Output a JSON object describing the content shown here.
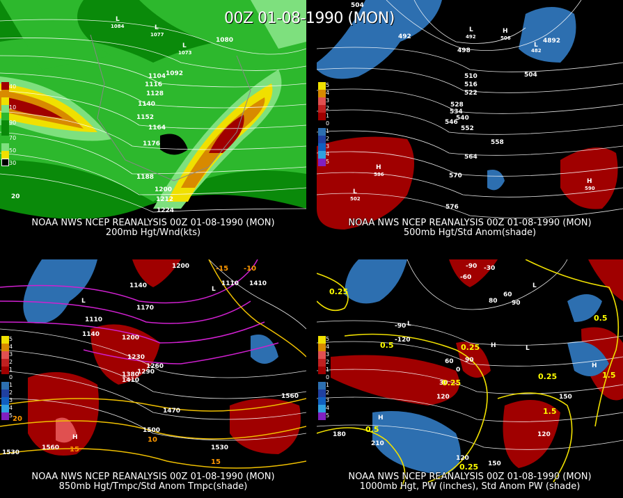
{
  "header": {
    "title": "00Z 01-08-1990 (MON)"
  },
  "panels": [
    {
      "caption1": "NOAA NWS NCEP REANALYSIS 00Z 01-08-1990 (MON)",
      "caption2": "200mb Hgt/Wnd(kts)",
      "colorbar": [
        "40",
        "10",
        "90",
        "70",
        "50",
        "30"
      ],
      "contours": [
        "1080",
        "1092",
        "1104",
        "1116",
        "1128",
        "1140",
        "1152",
        "1164",
        "1176",
        "1188",
        "1200",
        "1212",
        "1224"
      ],
      "lows": [
        "1084",
        "1077",
        "1073"
      ],
      "extra": [
        "20"
      ]
    },
    {
      "caption1": "NOAA NWS NCEP REANALYSIS 00Z 01-08-1990 (MON)",
      "caption2": "500mb Hgt/Std Anom(shade)",
      "colorbar": [
        "5",
        "4",
        "3",
        "2",
        "1",
        "0",
        "1",
        "2",
        "3",
        "4",
        "5"
      ],
      "contours": [
        "504",
        "492",
        "498",
        "510",
        "516",
        "522",
        "528",
        "534",
        "540",
        "546",
        "552",
        "558",
        "564",
        "570",
        "576",
        "504",
        "4892"
      ],
      "highs": [
        "586",
        "590",
        "506"
      ],
      "lows": [
        "502",
        "492",
        "482"
      ]
    },
    {
      "caption1": "NOAA NWS NCEP REANALYSIS 00Z 01-08-1990 (MON)",
      "caption2": "850mb Hgt/Tmpc/Std Anom Tmpc(shade)",
      "colorbar": [
        "5",
        "4",
        "3",
        "2",
        "1",
        "0",
        "1",
        "2",
        "3",
        "4",
        "5"
      ],
      "contours": [
        "1200",
        "1140",
        "1110",
        "1170",
        "1140",
        "1200",
        "1230",
        "1260",
        "1290",
        "1380",
        "1410",
        "1470",
        "1500",
        "1530",
        "1560",
        "1560",
        "1530",
        "1110",
        "1410"
      ],
      "temps": [
        "-15",
        "-10",
        "10",
        "15",
        "15",
        "20"
      ]
    },
    {
      "caption1": "NOAA NWS NCEP REANALYSIS 00Z 01-08-1990 (MON)",
      "caption2": "1000mb Hgt, PW (inches), Std Anom PW (shade)",
      "colorbar": [
        "5",
        "4",
        "3",
        "2",
        "1",
        "0",
        "1",
        "2",
        "3",
        "4",
        "5"
      ],
      "contours": [
        "-90",
        "-60",
        "-30",
        "-120",
        "-90",
        "80",
        "60",
        "90",
        "30",
        "0",
        "60",
        "90",
        "120",
        "150",
        "180",
        "210",
        "120",
        "150",
        "120"
      ],
      "pw": [
        "0.25",
        "0.5",
        "0.25",
        "0.25",
        "0.5",
        "0.25",
        "0.5",
        "1.5",
        "1.5",
        "0.25"
      ]
    }
  ],
  "colors": {
    "green_dark": "#0a8a0a",
    "green": "#2db82d",
    "green_light": "#7ee07e",
    "yellow": "#f0e000",
    "orange": "#d88a00",
    "red": "#a00000",
    "blue": "#2d6fb0",
    "purple": "#d020d0"
  }
}
